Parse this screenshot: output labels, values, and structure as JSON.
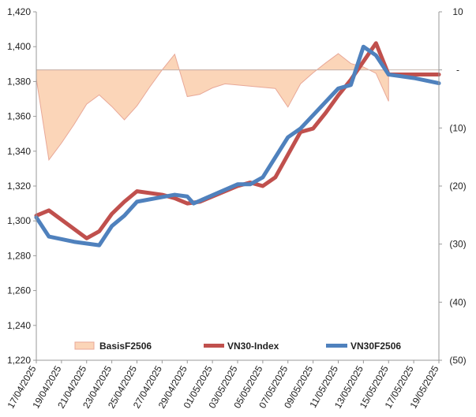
{
  "chart_data": {
    "type": "line",
    "title": "",
    "colors": {
      "basis_fill": "#fbd5b8",
      "basis_stroke": "#e8a898",
      "vn30_index": "#c0504d",
      "vn30f": "#4f81bd",
      "axis": "#999999",
      "zero_line": "#c8b8b0"
    },
    "left_axis": {
      "ylim": [
        1220,
        1420
      ],
      "ticks": [
        "1,220",
        "1,240",
        "1,260",
        "1,280",
        "1,300",
        "1,320",
        "1,340",
        "1,360",
        "1,380",
        "1,400",
        "1,420"
      ]
    },
    "right_axis": {
      "ylim": [
        -50,
        10
      ],
      "ticks": [
        "(50)",
        "(40)",
        "(30)",
        "(20)",
        "(10)",
        "-",
        "10"
      ]
    },
    "x_tick_labels": [
      "17/04/2025",
      "19/04/2025",
      "21/04/2025",
      "23/04/2025",
      "25/04/2025",
      "27/04/2025",
      "29/04/2025",
      "01/05/2025",
      "03/05/2025",
      "05/05/2025",
      "07/05/2025",
      "09/05/2025",
      "11/05/2025",
      "13/05/2025",
      "15/05/2025",
      "17/05/2025",
      "19/05/2025"
    ],
    "x_range": [
      0,
      32
    ],
    "legend_position": "bottom",
    "legend": [
      "BasisF2506",
      "VN30-Index",
      "VN30F2506"
    ],
    "series": [
      {
        "name": "BasisF2506",
        "axis": "right",
        "style": "area",
        "x": [
          0,
          1,
          2,
          3,
          4,
          5,
          6,
          7,
          8,
          9,
          10,
          11,
          12,
          13,
          14,
          15,
          19,
          20,
          21,
          22,
          23,
          24,
          25,
          26,
          27,
          28
        ],
        "values": [
          -1.5,
          -15.5,
          -12.6,
          -9.4,
          -5.9,
          -4.3,
          -6.3,
          -8.6,
          -6.2,
          -3.0,
          0.0,
          2.7,
          -4.6,
          -4.2,
          -3.1,
          -2.4,
          -3.2,
          -6.4,
          -2.4,
          -0.5,
          1.2,
          2.8,
          1.1,
          0.5,
          -0.6,
          -5.4
        ]
      },
      {
        "name": "VN30-Index",
        "axis": "left",
        "values": [
          1303,
          1306,
          1290,
          1294,
          1304,
          1311,
          1317,
          1315,
          1313,
          1310,
          1311,
          1320,
          1322,
          1320,
          1325,
          1351,
          1353,
          1362,
          1372,
          1381,
          1402,
          1384,
          1384,
          1384
        ],
        "x": [
          0,
          1,
          4,
          5,
          6,
          7,
          8,
          10,
          11,
          12,
          13,
          16,
          17,
          18,
          19,
          21,
          22,
          23,
          24,
          25,
          27,
          28,
          31,
          32
        ]
      },
      {
        "name": "VN30F2506",
        "axis": "left",
        "values": [
          1302,
          1291,
          1288,
          1286,
          1297,
          1303,
          1311,
          1315,
          1314,
          1310,
          1321,
          1321,
          1325,
          1348,
          1353,
          1376,
          1378,
          1400,
          1395,
          1384,
          1382,
          1379
        ],
        "x": [
          0,
          1,
          3,
          5,
          6,
          7,
          8,
          11,
          12,
          12.5,
          16,
          17,
          18,
          20,
          21,
          24,
          25,
          26,
          27,
          28,
          30,
          32
        ]
      }
    ]
  }
}
